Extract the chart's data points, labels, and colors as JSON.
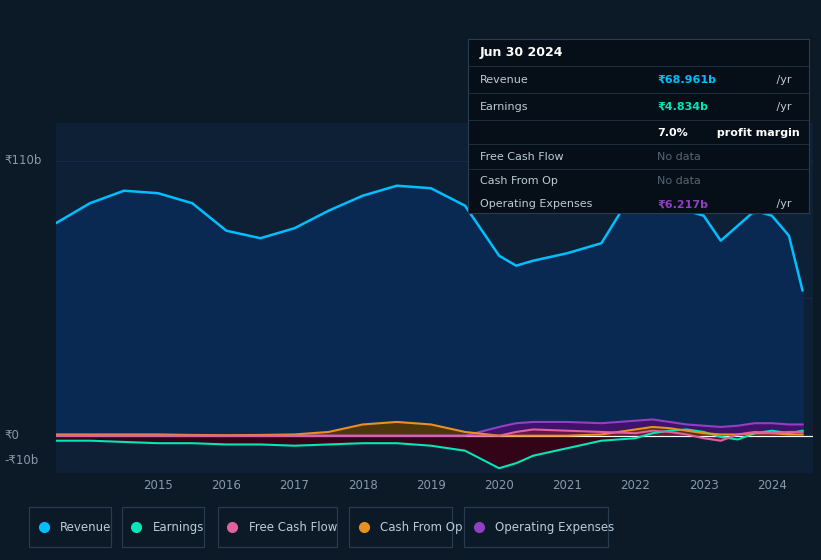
{
  "bg_color": "#0c1a28",
  "plot_bg_color": "#0d2035",
  "grid_color": "#1a3050",
  "ylabel_top": "₹110b",
  "ylabel_zero": "₹0",
  "ylabel_neg": "-₹10b",
  "years": [
    2013.5,
    2014.0,
    2014.5,
    2015.0,
    2015.5,
    2016.0,
    2016.5,
    2017.0,
    2017.5,
    2018.0,
    2018.5,
    2019.0,
    2019.5,
    2020.0,
    2020.25,
    2020.5,
    2021.0,
    2021.5,
    2022.0,
    2022.25,
    2022.5,
    2022.75,
    2023.0,
    2023.25,
    2023.5,
    2023.75,
    2024.0,
    2024.25,
    2024.45
  ],
  "revenue": [
    85,
    93,
    98,
    97,
    93,
    82,
    79,
    83,
    90,
    96,
    100,
    99,
    92,
    72,
    68,
    70,
    73,
    77,
    99,
    106,
    102,
    90,
    88,
    78,
    84,
    90,
    88,
    80,
    58
  ],
  "earnings": [
    -2,
    -2,
    -2.5,
    -3,
    -3,
    -3.5,
    -3.5,
    -4,
    -3.5,
    -3,
    -3,
    -4,
    -6,
    -13,
    -11,
    -8,
    -5,
    -2,
    -1,
    1,
    2,
    2.5,
    1.5,
    -0.5,
    -1.5,
    1,
    2,
    1,
    2
  ],
  "free_cash_flow": [
    0,
    0,
    0,
    0,
    0,
    0,
    0,
    0,
    0,
    0,
    0,
    0,
    0,
    0,
    1.5,
    2.5,
    2,
    1.5,
    1,
    2,
    1.5,
    0.5,
    -1,
    -2,
    0.5,
    1.5,
    1,
    1.5,
    1.5
  ],
  "cash_from_op": [
    0.5,
    0.5,
    0.5,
    0.5,
    0.3,
    0.2,
    0.3,
    0.5,
    1.5,
    4.5,
    5.5,
    4.5,
    1.5,
    0,
    0,
    0,
    0,
    0.5,
    2.5,
    3.5,
    3,
    2,
    1,
    0.5,
    0.5,
    1,
    1,
    0.5,
    0.5
  ],
  "operating_expenses": [
    0,
    0,
    0,
    0,
    0,
    0,
    0,
    0,
    0,
    0,
    0,
    0,
    0,
    3.5,
    5,
    5.5,
    5.5,
    5,
    6,
    6.5,
    5.5,
    4.5,
    4,
    3.5,
    4,
    5,
    5,
    4.5,
    4.5
  ],
  "revenue_color": "#00bfff",
  "revenue_fill": "#0a2952",
  "earnings_color": "#00e8b8",
  "earnings_fill_neg": "#3a0012",
  "earnings_fill_pos": "#005533",
  "fcf_color": "#e060a0",
  "fcf_fill": "#701840",
  "cashop_color": "#e89020",
  "cashop_fill": "#5a3800",
  "opex_color": "#9040c0",
  "opex_fill": "#4a1070",
  "info_title": "Jun 30 2024",
  "info_revenue_val": "₹68.961b",
  "info_earnings_val": "₹4.834b",
  "info_margin_pct": "7.0%",
  "info_opex_val": "₹6.217b",
  "legend_labels": [
    "Revenue",
    "Earnings",
    "Free Cash Flow",
    "Cash From Op",
    "Operating Expenses"
  ],
  "legend_colors": [
    "#00bfff",
    "#00e8b8",
    "#e060a0",
    "#e89020",
    "#9040c0"
  ],
  "xtick_years": [
    2015,
    2016,
    2017,
    2018,
    2019,
    2020,
    2021,
    2022,
    2023,
    2024
  ],
  "ylim": [
    -15,
    125
  ],
  "xlim_lo": 2013.5,
  "xlim_hi": 2024.6
}
